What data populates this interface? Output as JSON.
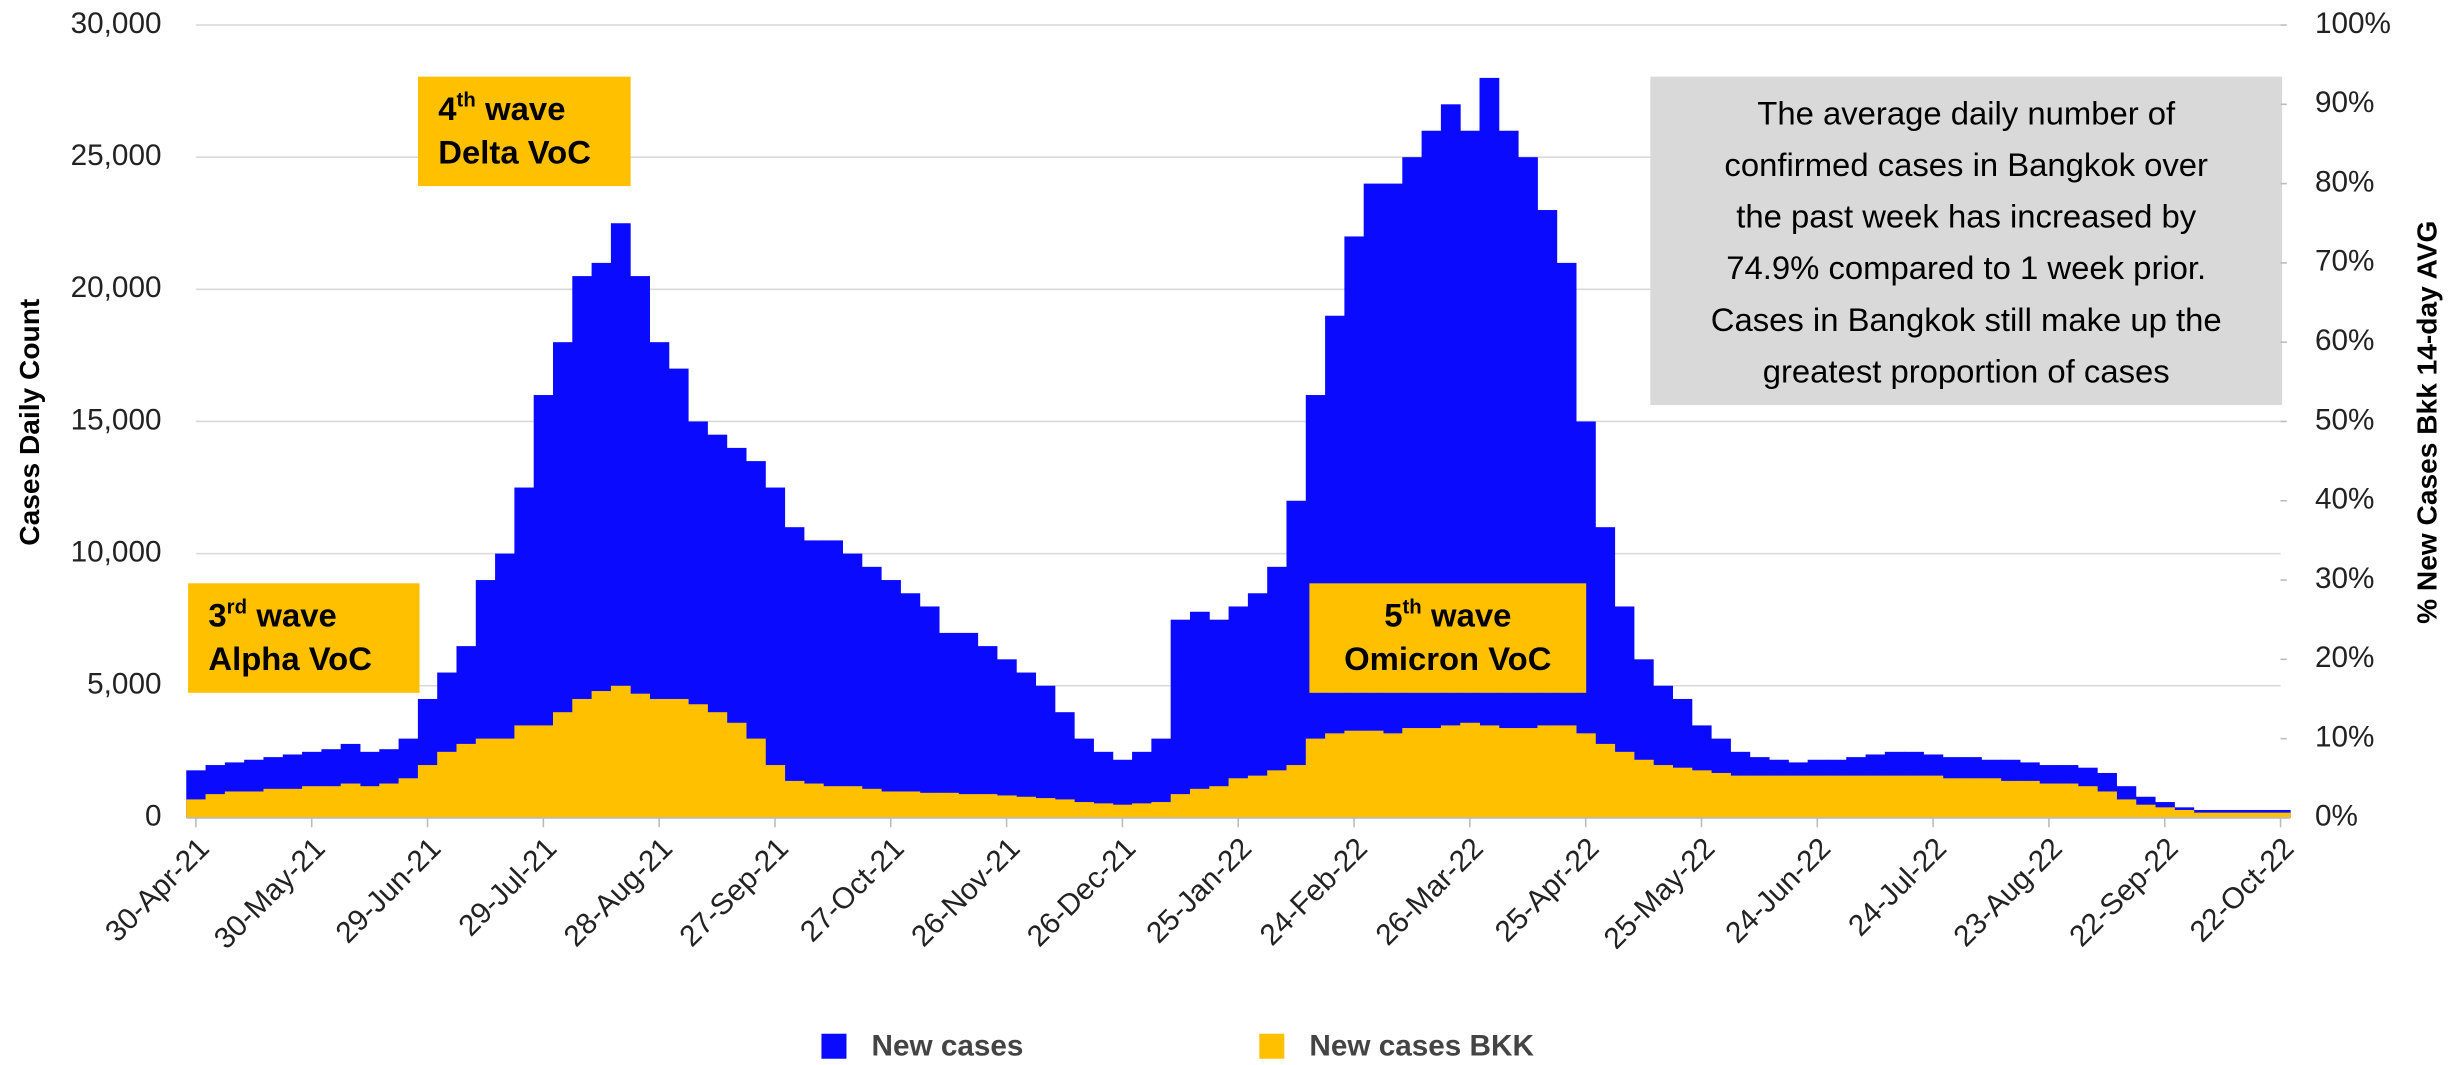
{
  "chart_data": {
    "type": "bar",
    "y_axis_label": "Cases Daily  Count",
    "y2_axis_label": "% New Cases Bkk 14-day AVG",
    "categories": [
      "30-Apr-21",
      null,
      null,
      null,
      null,
      null,
      "30-May-21",
      null,
      null,
      null,
      null,
      null,
      "29-Jun-21",
      null,
      null,
      null,
      null,
      null,
      "29-Jul-21",
      null,
      null,
      null,
      null,
      null,
      "28-Aug-21",
      null,
      null,
      null,
      null,
      null,
      "27-Sep-21",
      null,
      null,
      null,
      null,
      null,
      "27-Oct-21",
      null,
      null,
      null,
      null,
      null,
      "26-Nov-21",
      null,
      null,
      null,
      null,
      null,
      "26-Dec-21",
      null,
      null,
      null,
      null,
      null,
      "25-Jan-22",
      null,
      null,
      null,
      null,
      null,
      "24-Feb-22",
      null,
      null,
      null,
      null,
      null,
      "26-Mar-22",
      null,
      null,
      null,
      null,
      null,
      "25-Apr-22",
      null,
      null,
      null,
      null,
      null,
      "25-May-22",
      null,
      null,
      null,
      null,
      null,
      "24-Jun-22",
      null,
      null,
      null,
      null,
      null,
      "24-Jul-22",
      null,
      null,
      null,
      null,
      null,
      "23-Aug-22",
      null,
      null,
      null,
      null,
      null,
      "22-Sep-22",
      null,
      null,
      null,
      null,
      null,
      "22-Oct-22"
    ],
    "series": [
      {
        "name": "New cases",
        "color": "#0a0aff",
        "values": [
          1800,
          2000,
          2100,
          2200,
          2300,
          2400,
          2500,
          2600,
          2800,
          2500,
          2600,
          3000,
          4500,
          5500,
          6500,
          9000,
          10000,
          12500,
          16000,
          18000,
          20500,
          21000,
          22500,
          20500,
          18000,
          17000,
          15000,
          14500,
          14000,
          13500,
          12500,
          11000,
          10500,
          10500,
          10000,
          9500,
          9000,
          8500,
          8000,
          7000,
          7000,
          6500,
          6000,
          5500,
          5000,
          4000,
          3000,
          2500,
          2200,
          2500,
          3000,
          7500,
          7800,
          7500,
          8000,
          8500,
          9500,
          12000,
          16000,
          19000,
          22000,
          24000,
          24000,
          25000,
          26000,
          27000,
          26000,
          28000,
          26000,
          25000,
          23000,
          21000,
          15000,
          11000,
          8000,
          6000,
          5000,
          4500,
          3500,
          3000,
          2500,
          2300,
          2200,
          2100,
          2200,
          2200,
          2300,
          2400,
          2500,
          2500,
          2400,
          2300,
          2300,
          2200,
          2200,
          2100,
          2000,
          2000,
          1900,
          1700,
          1200,
          800,
          600,
          400,
          300,
          300,
          300,
          300,
          300
        ]
      },
      {
        "name": "New cases BKK",
        "color": "#ffc000",
        "values": [
          700,
          900,
          1000,
          1000,
          1100,
          1100,
          1200,
          1200,
          1300,
          1200,
          1300,
          1500,
          2000,
          2500,
          2800,
          3000,
          3000,
          3500,
          3500,
          4000,
          4500,
          4800,
          5000,
          4700,
          4500,
          4500,
          4300,
          4000,
          3600,
          3000,
          2000,
          1400,
          1300,
          1200,
          1200,
          1100,
          1000,
          1000,
          950,
          950,
          900,
          900,
          850,
          800,
          750,
          700,
          600,
          550,
          500,
          550,
          600,
          900,
          1100,
          1200,
          1500,
          1600,
          1800,
          2000,
          3000,
          3200,
          3300,
          3300,
          3200,
          3400,
          3400,
          3500,
          3600,
          3500,
          3400,
          3400,
          3500,
          3500,
          3200,
          2800,
          2500,
          2200,
          2000,
          1900,
          1800,
          1700,
          1600,
          1600,
          1600,
          1600,
          1600,
          1600,
          1600,
          1600,
          1600,
          1600,
          1600,
          1500,
          1500,
          1500,
          1400,
          1400,
          1300,
          1300,
          1200,
          1000,
          700,
          500,
          400,
          300,
          200,
          200,
          200,
          200,
          200
        ]
      }
    ],
    "ylim": [
      0,
      30000
    ],
    "yticks": [
      0,
      {
        "value": 5000,
        "label": "5,000"
      },
      {
        "value": 10000,
        "label": "10,000"
      },
      {
        "value": 15000,
        "label": "15,000"
      },
      {
        "value": 20000,
        "label": "20,000"
      },
      {
        "value": 25000,
        "label": "25,000"
      },
      {
        "value": 30000,
        "label": "30,000"
      }
    ],
    "y2lim": [
      0,
      100
    ],
    "y2ticks": [
      {
        "value": 0,
        "label": "0%"
      },
      {
        "value": 10,
        "label": "10%"
      },
      {
        "value": 20,
        "label": "20%"
      },
      {
        "value": 30,
        "label": "30%"
      },
      {
        "value": 40,
        "label": "40%"
      },
      {
        "value": 50,
        "label": "50%"
      },
      {
        "value": 60,
        "label": "60%"
      },
      {
        "value": 70,
        "label": "70%"
      },
      {
        "value": 80,
        "label": "80%"
      },
      {
        "value": 90,
        "label": "90%"
      },
      {
        "value": 100,
        "label": "100%"
      }
    ],
    "grid": true,
    "legend": "bottom",
    "annotations": [
      {
        "ordinal": "3",
        "sup": "rd",
        "wave": "wave",
        "voc": "Alpha VoC"
      },
      {
        "ordinal": "4",
        "sup": "th",
        "wave": "wave",
        "voc": "Delta VoC"
      },
      {
        "ordinal": "5",
        "sup": "th",
        "wave": "wave",
        "voc": "Omicron VoC"
      }
    ],
    "note": [
      "The average daily number of",
      "confirmed cases in Bangkok over",
      "the past week has increased by",
      "74.9% compared to 1 week prior.",
      "Cases in Bangkok still make up the",
      "greatest proportion of cases"
    ]
  }
}
